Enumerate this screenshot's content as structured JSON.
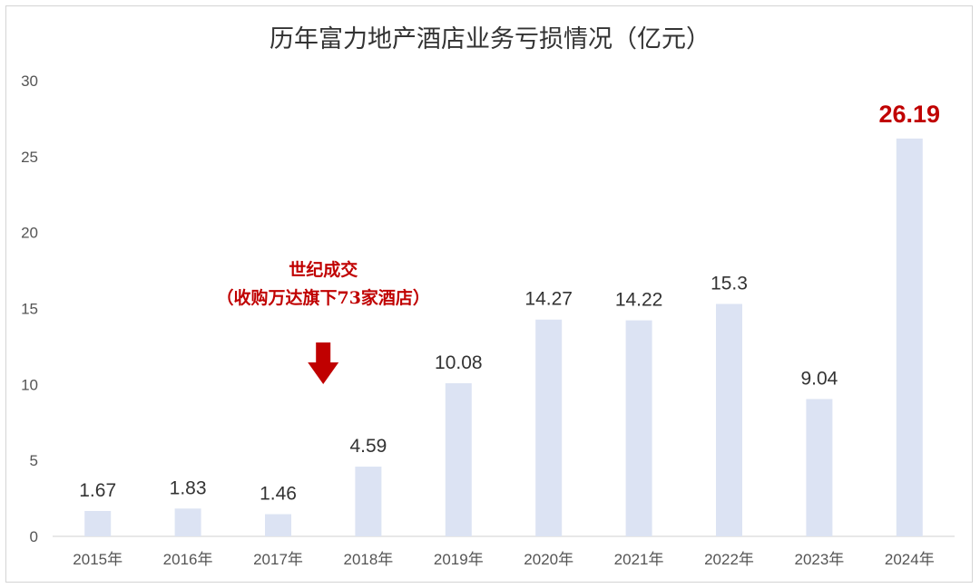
{
  "chart_data": {
    "type": "bar",
    "title": "历年富力地产酒店业务亏损情况（亿元）",
    "categories": [
      "2015年",
      "2016年",
      "2017年",
      "2018年",
      "2019年",
      "2020年",
      "2021年",
      "2022年",
      "2023年",
      "2024年"
    ],
    "values": [
      1.67,
      1.83,
      1.46,
      4.59,
      10.08,
      14.27,
      14.22,
      15.3,
      9.04,
      26.19
    ],
    "value_labels": [
      "1.67",
      "1.83",
      "1.46",
      "4.59",
      "10.08",
      "14.27",
      "14.22",
      "15.3",
      "9.04",
      "26.19"
    ],
    "ylim": [
      0,
      30
    ],
    "yticks": [
      "0",
      "5",
      "10",
      "15",
      "20",
      "25",
      "30"
    ],
    "grid": false,
    "bar_color": "#dce3f3",
    "highlight_index": 9,
    "highlight_color": "#c00000",
    "annotation": {
      "line1": "世纪成交",
      "line2": "（收购万达旗下73家酒店）",
      "category_index": 2.5,
      "color": "#c00000"
    }
  }
}
